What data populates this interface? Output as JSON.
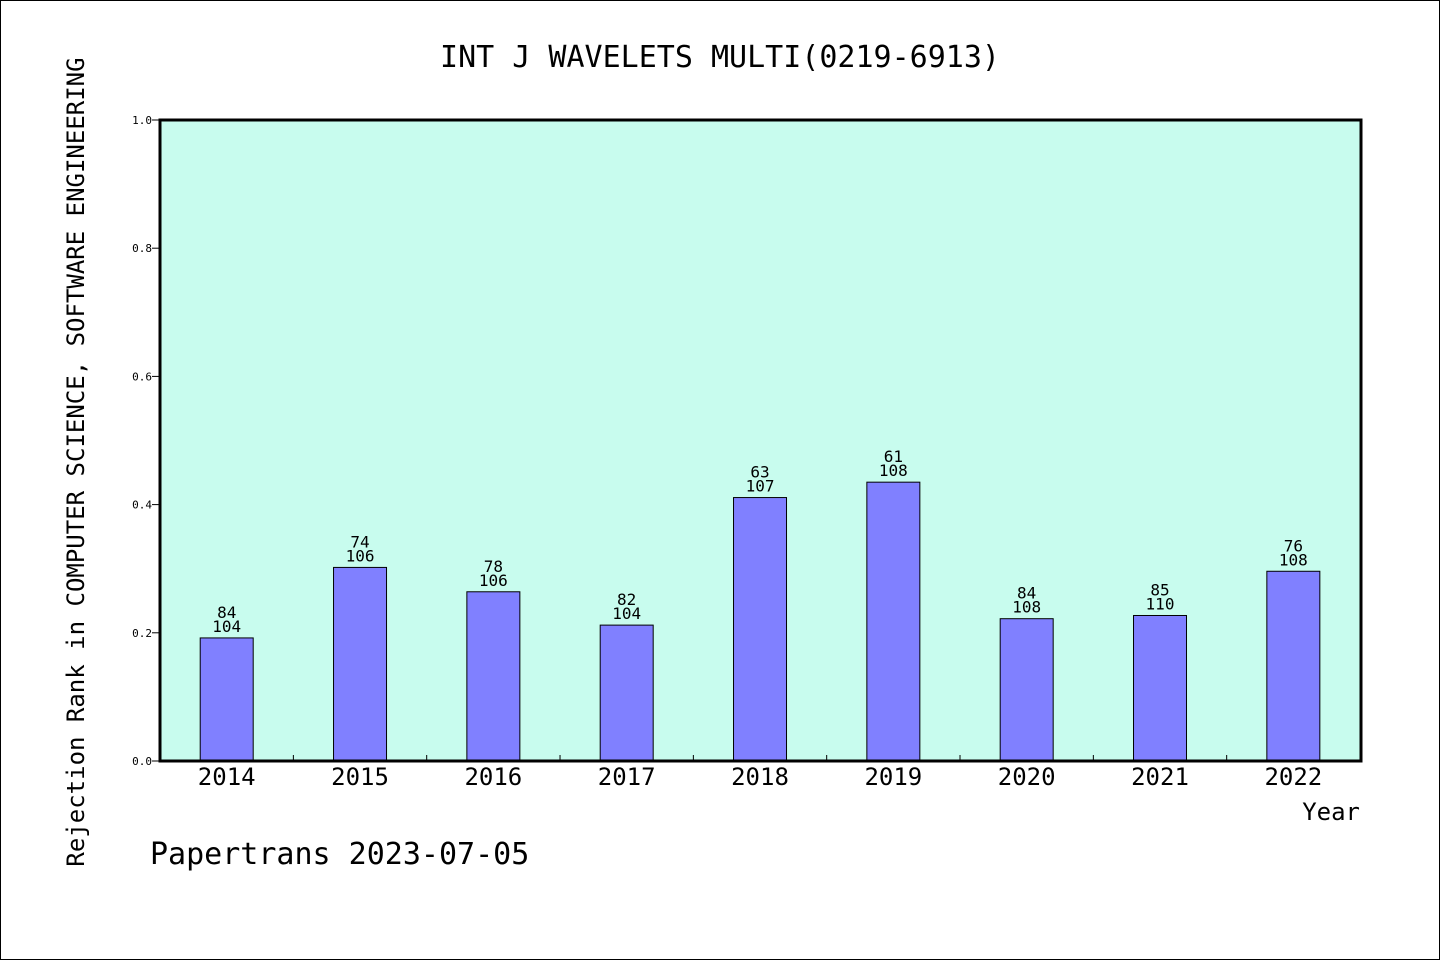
{
  "chart_data": {
    "type": "bar",
    "title": "INT J WAVELETS MULTI(0219-6913)",
    "xlabel": "Year",
    "ylabel": "Rejection Rank in COMPUTER SCIENCE, SOFTWARE ENGINEERING",
    "ylim": [
      0,
      1.0
    ],
    "yticks": [
      "0.0",
      "0.2",
      "0.4",
      "0.6",
      "0.8",
      "1.0"
    ],
    "categories": [
      "2014",
      "2015",
      "2016",
      "2017",
      "2018",
      "2019",
      "2020",
      "2021",
      "2022"
    ],
    "values": [
      0.192,
      0.302,
      0.264,
      0.212,
      0.411,
      0.435,
      0.222,
      0.227,
      0.296
    ],
    "rank_labels": [
      "84",
      "74",
      "78",
      "82",
      "63",
      "61",
      "84",
      "85",
      "76"
    ],
    "total_labels": [
      "104",
      "106",
      "106",
      "104",
      "107",
      "108",
      "108",
      "110",
      "108"
    ],
    "grid": false,
    "legend": "none",
    "colors": {
      "plot_background": "#c8fcee",
      "bar_fill": "#8080ff",
      "bar_stroke": "#000000",
      "text": "#000000"
    }
  },
  "footer": {
    "credit": "Papertrans 2023-07-05"
  }
}
